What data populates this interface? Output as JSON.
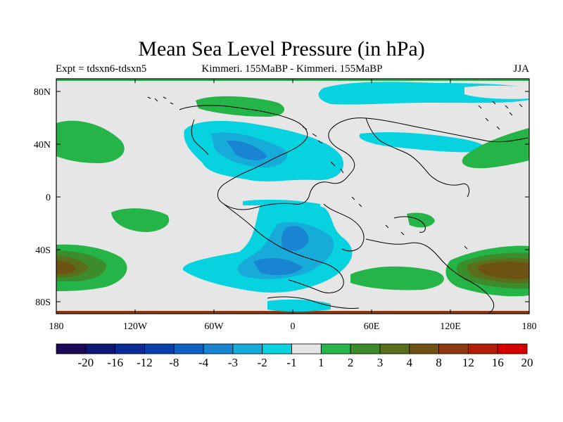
{
  "title": "Mean Sea Level Pressure (in hPa)",
  "subtitle": {
    "left": "Expt = tdsxn6-tdsxn5",
    "center": "Kimmeri. 155MaBP - Kimmeri. 155MaBP",
    "right": "JJA"
  },
  "axes": {
    "x_ticks": [
      "180",
      "120W",
      "60W",
      "0",
      "60E",
      "120E",
      "180"
    ],
    "y_ticks": [
      "80N",
      "40N",
      "0",
      "40S",
      "80S"
    ]
  },
  "colorbar": {
    "labels": [
      "-20",
      "-16",
      "-12",
      "-8",
      "-4",
      "-3",
      "-2",
      "-1",
      "1",
      "2",
      "3",
      "4",
      "8",
      "12",
      "16",
      "20"
    ],
    "colors": [
      "#1a0a55",
      "#0d1875",
      "#0a2a95",
      "#0a3fae",
      "#0e62c4",
      "#1985d2",
      "#16abd8",
      "#07d2e0",
      "#e5e5e5",
      "#24b447",
      "#3d8c2c",
      "#5a6e1b",
      "#6e5214",
      "#8e3910",
      "#b41e08",
      "#d40000"
    ]
  },
  "chart_data": {
    "type": "map",
    "title": "Mean Sea Level Pressure (in hPa)",
    "experiment": "Expt = tdsxn6-tdsxn5",
    "season": "JJA",
    "x_range": [
      -180,
      180
    ],
    "y_range": [
      -90,
      90
    ],
    "contour_levels": [
      -20,
      -16,
      -12,
      -8,
      -4,
      -3,
      -2,
      -1,
      1,
      2,
      3,
      4,
      8,
      12,
      16,
      20
    ]
  }
}
